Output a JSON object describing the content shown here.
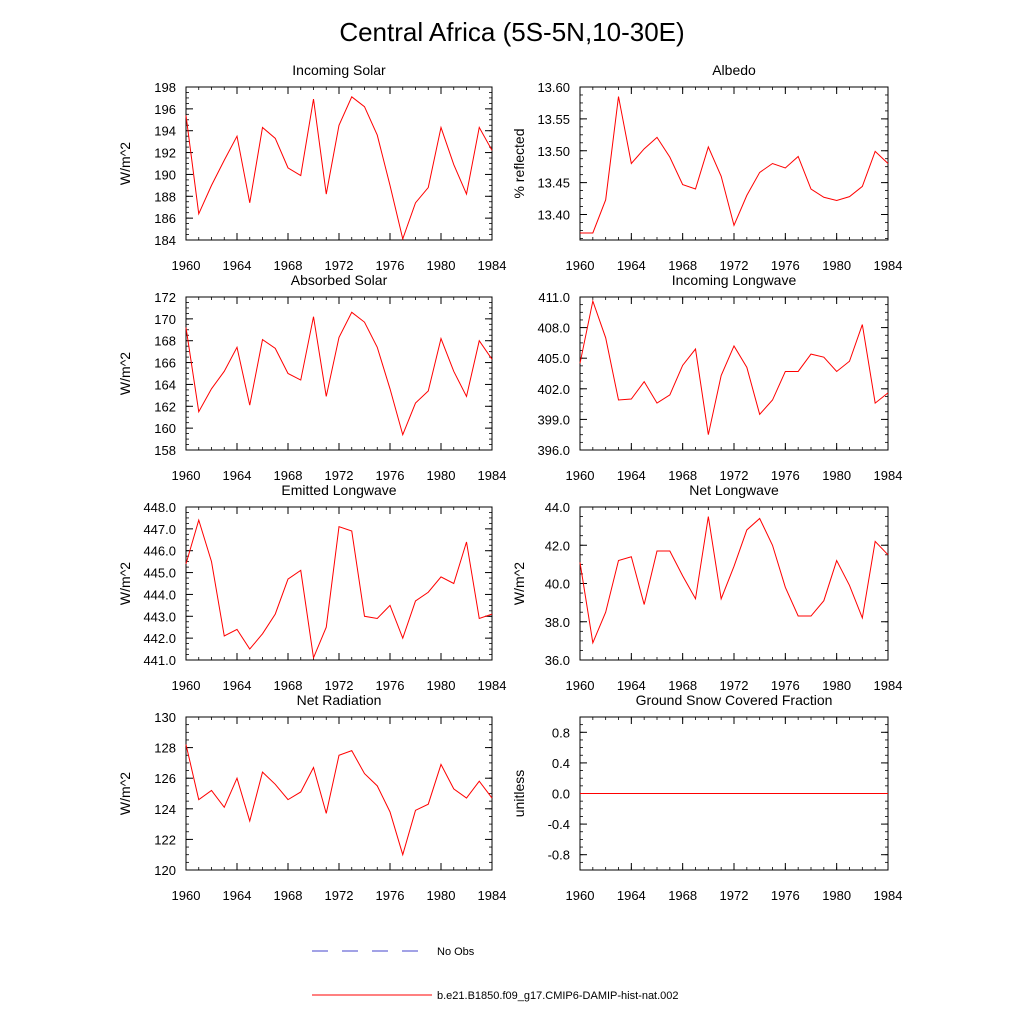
{
  "title": "Central Africa (5S-5N,10-30E)",
  "colors": {
    "series": "#ff0000",
    "no_obs": "#4444cc",
    "axis": "#000000"
  },
  "legend": [
    {
      "label": "No Obs",
      "color": "#4444cc",
      "style": "dashed"
    },
    {
      "label": "b.e21.B1850.f09_g17.CMIP6-DAMIP-hist-nat.002",
      "color": "#ff0000",
      "style": "solid"
    }
  ],
  "chart_data": [
    {
      "type": "line",
      "title": "Incoming Solar",
      "xlabel": "",
      "ylabel": "W/m^2",
      "xlim": [
        1960,
        1984
      ],
      "ylim": [
        184,
        198
      ],
      "xticks": [
        "1960",
        "1964",
        "1968",
        "1972",
        "1976",
        "1980",
        "1984"
      ],
      "yticks": [
        "184",
        "186",
        "188",
        "190",
        "192",
        "194",
        "196",
        "198"
      ],
      "x": [
        1960,
        1961,
        1962,
        1963,
        1964,
        1965,
        1966,
        1967,
        1968,
        1969,
        1970,
        1971,
        1972,
        1973,
        1974,
        1975,
        1976,
        1977,
        1978,
        1979,
        1980,
        1981,
        1982,
        1983,
        1984
      ],
      "series": [
        {
          "values": [
            195.4,
            186.4,
            189.0,
            191.3,
            193.5,
            187.4,
            194.3,
            193.3,
            190.6,
            189.9,
            196.9,
            188.2,
            194.5,
            197.1,
            196.2,
            193.6,
            189.0,
            184.1,
            187.4,
            188.8,
            194.3,
            190.9,
            188.2,
            194.3,
            192.2
          ]
        }
      ]
    },
    {
      "type": "line",
      "title": "Albedo",
      "xlabel": "",
      "ylabel": "% reflected",
      "xlim": [
        1960,
        1984
      ],
      "ylim": [
        13.36,
        13.6
      ],
      "xticks": [
        "1960",
        "1964",
        "1968",
        "1972",
        "1976",
        "1980",
        "1984"
      ],
      "yticks": [
        "13.40",
        "13.45",
        "13.50",
        "13.55",
        "13.60"
      ],
      "x": [
        1960,
        1961,
        1962,
        1963,
        1964,
        1965,
        1966,
        1967,
        1968,
        1969,
        1970,
        1971,
        1972,
        1973,
        1974,
        1975,
        1976,
        1977,
        1978,
        1979,
        1980,
        1981,
        1982,
        1983,
        1984
      ],
      "series": [
        {
          "values": [
            13.371,
            13.371,
            13.423,
            13.585,
            13.48,
            13.503,
            13.521,
            13.49,
            13.447,
            13.44,
            13.506,
            13.46,
            13.383,
            13.43,
            13.466,
            13.48,
            13.473,
            13.491,
            13.44,
            13.427,
            13.422,
            13.428,
            13.444,
            13.499,
            13.48
          ]
        }
      ]
    },
    {
      "type": "line",
      "title": "Absorbed Solar",
      "xlabel": "",
      "ylabel": "W/m^2",
      "xlim": [
        1960,
        1984
      ],
      "ylim": [
        158,
        172
      ],
      "xticks": [
        "1960",
        "1964",
        "1968",
        "1972",
        "1976",
        "1980",
        "1984"
      ],
      "yticks": [
        "158",
        "160",
        "162",
        "164",
        "166",
        "168",
        "170",
        "172"
      ],
      "x": [
        1960,
        1961,
        1962,
        1963,
        1964,
        1965,
        1966,
        1967,
        1968,
        1969,
        1970,
        1971,
        1972,
        1973,
        1974,
        1975,
        1976,
        1977,
        1978,
        1979,
        1980,
        1981,
        1982,
        1983,
        1984
      ],
      "series": [
        {
          "values": [
            169.2,
            161.5,
            163.6,
            165.2,
            167.4,
            162.1,
            168.1,
            167.3,
            165.0,
            164.4,
            170.2,
            162.9,
            168.3,
            170.6,
            169.7,
            167.4,
            163.6,
            159.4,
            162.3,
            163.4,
            168.2,
            165.2,
            162.9,
            168.0,
            166.3
          ]
        }
      ]
    },
    {
      "type": "line",
      "title": "Incoming Longwave",
      "xlabel": "",
      "ylabel": "",
      "xlim": [
        1960,
        1984
      ],
      "ylim": [
        396,
        411
      ],
      "xticks": [
        "1960",
        "1964",
        "1968",
        "1972",
        "1976",
        "1980",
        "1984"
      ],
      "yticks": [
        "396.0",
        "399.0",
        "402.0",
        "405.0",
        "408.0",
        "411.0"
      ],
      "x": [
        1960,
        1961,
        1962,
        1963,
        1964,
        1965,
        1966,
        1967,
        1968,
        1969,
        1970,
        1971,
        1972,
        1973,
        1974,
        1975,
        1976,
        1977,
        1978,
        1979,
        1980,
        1981,
        1982,
        1983,
        1984
      ],
      "series": [
        {
          "values": [
            404.5,
            410.6,
            407.0,
            400.9,
            401.0,
            402.7,
            400.6,
            401.4,
            404.3,
            405.9,
            397.5,
            403.3,
            406.2,
            404.1,
            399.5,
            400.9,
            403.7,
            403.7,
            405.4,
            405.1,
            403.7,
            404.7,
            408.3,
            400.6,
            401.6
          ]
        }
      ]
    },
    {
      "type": "line",
      "title": "Emitted Longwave",
      "xlabel": "",
      "ylabel": "W/m^2",
      "xlim": [
        1960,
        1984
      ],
      "ylim": [
        441,
        448
      ],
      "xticks": [
        "1960",
        "1964",
        "1968",
        "1972",
        "1976",
        "1980",
        "1984"
      ],
      "yticks": [
        "441.0",
        "442.0",
        "443.0",
        "444.0",
        "445.0",
        "446.0",
        "447.0",
        "448.0"
      ],
      "x": [
        1960,
        1961,
        1962,
        1963,
        1964,
        1965,
        1966,
        1967,
        1968,
        1969,
        1970,
        1971,
        1972,
        1973,
        1974,
        1975,
        1976,
        1977,
        1978,
        1979,
        1980,
        1981,
        1982,
        1983,
        1984
      ],
      "series": [
        {
          "values": [
            445.4,
            447.4,
            445.5,
            442.1,
            442.4,
            441.5,
            442.2,
            443.1,
            444.7,
            445.1,
            441.1,
            442.5,
            447.1,
            446.9,
            443.0,
            442.9,
            443.5,
            442.0,
            443.7,
            444.1,
            444.8,
            444.5,
            446.4,
            442.9,
            443.1
          ]
        }
      ]
    },
    {
      "type": "line",
      "title": "Net Longwave",
      "xlabel": "",
      "ylabel": "W/m^2",
      "xlim": [
        1960,
        1984
      ],
      "ylim": [
        36,
        44
      ],
      "xticks": [
        "1960",
        "1964",
        "1968",
        "1972",
        "1976",
        "1980",
        "1984"
      ],
      "yticks": [
        "36.0",
        "38.0",
        "40.0",
        "42.0",
        "44.0"
      ],
      "x": [
        1960,
        1961,
        1962,
        1963,
        1964,
        1965,
        1966,
        1967,
        1968,
        1969,
        1970,
        1971,
        1972,
        1973,
        1974,
        1975,
        1976,
        1977,
        1978,
        1979,
        1980,
        1981,
        1982,
        1983,
        1984
      ],
      "series": [
        {
          "values": [
            41.1,
            36.9,
            38.5,
            41.2,
            41.4,
            38.9,
            41.7,
            41.7,
            40.4,
            39.2,
            43.5,
            39.2,
            40.9,
            42.8,
            43.4,
            42.0,
            39.8,
            38.3,
            38.3,
            39.1,
            41.2,
            39.9,
            38.2,
            42.2,
            41.5
          ]
        }
      ]
    },
    {
      "type": "line",
      "title": "Net Radiation",
      "xlabel": "",
      "ylabel": "W/m^2",
      "xlim": [
        1960,
        1984
      ],
      "ylim": [
        120,
        130
      ],
      "xticks": [
        "1960",
        "1964",
        "1968",
        "1972",
        "1976",
        "1980",
        "1984"
      ],
      "yticks": [
        "120",
        "122",
        "124",
        "126",
        "128",
        "130"
      ],
      "x": [
        1960,
        1961,
        1962,
        1963,
        1964,
        1965,
        1966,
        1967,
        1968,
        1969,
        1970,
        1971,
        1972,
        1973,
        1974,
        1975,
        1976,
        1977,
        1978,
        1979,
        1980,
        1981,
        1982,
        1983,
        1984
      ],
      "series": [
        {
          "values": [
            128.2,
            124.6,
            125.2,
            124.1,
            126.0,
            123.2,
            126.4,
            125.6,
            124.6,
            125.1,
            126.7,
            123.7,
            127.5,
            127.8,
            126.3,
            125.5,
            123.8,
            121.0,
            123.9,
            124.3,
            126.9,
            125.3,
            124.7,
            125.8,
            124.7
          ]
        }
      ]
    },
    {
      "type": "line",
      "title": "Ground Snow Covered Fraction",
      "xlabel": "",
      "ylabel": "unitless",
      "xlim": [
        1960,
        1984
      ],
      "ylim": [
        -1.0,
        1.0
      ],
      "xticks": [
        "1960",
        "1964",
        "1968",
        "1972",
        "1976",
        "1980",
        "1984"
      ],
      "yticks": [
        "-0.8",
        "-0.4",
        "0.0",
        "0.4",
        "0.8"
      ],
      "x": [
        1960,
        1984
      ],
      "series": [
        {
          "values": [
            0,
            0
          ]
        }
      ]
    }
  ]
}
